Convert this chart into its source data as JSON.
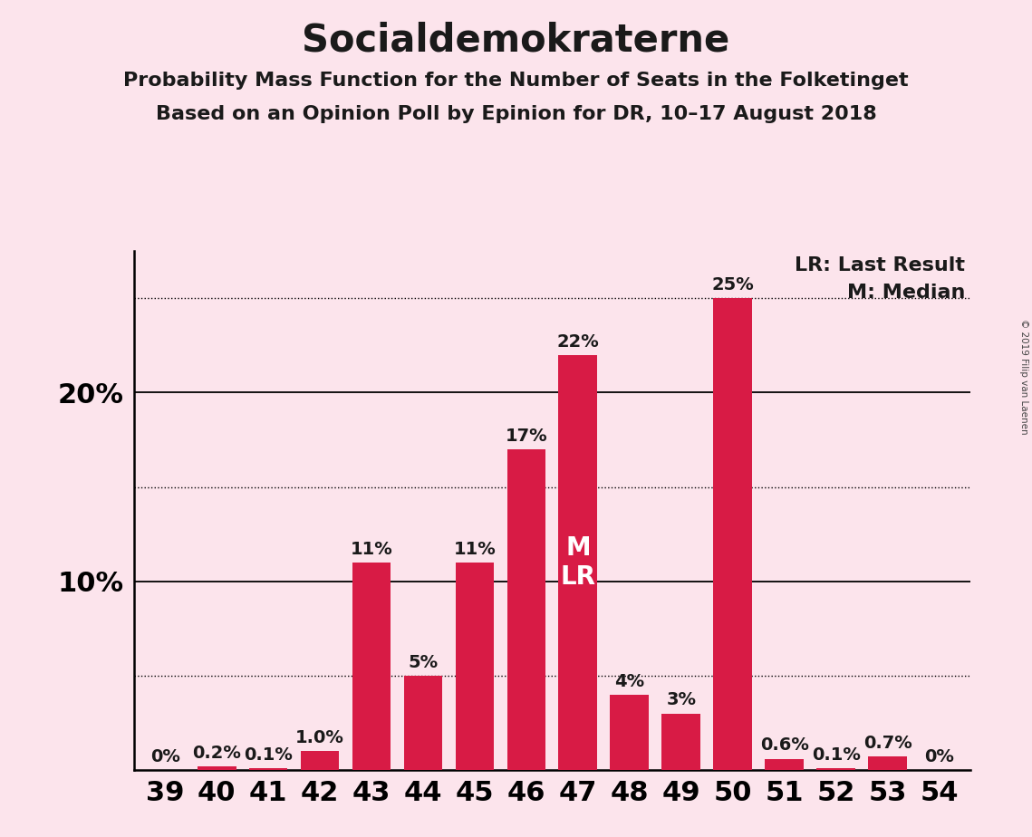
{
  "title": "Socialdemokraterne",
  "subtitle1": "Probability Mass Function for the Number of Seats in the Folketinget",
  "subtitle2": "Based on an Opinion Poll by Epinion for DR, 10–17 August 2018",
  "copyright": "© 2019 Filip van Laenen",
  "categories": [
    39,
    40,
    41,
    42,
    43,
    44,
    45,
    46,
    47,
    48,
    49,
    50,
    51,
    52,
    53,
    54
  ],
  "values": [
    0.0,
    0.2,
    0.1,
    1.0,
    11.0,
    5.0,
    11.0,
    17.0,
    22.0,
    4.0,
    3.0,
    25.0,
    0.6,
    0.1,
    0.7,
    0.0
  ],
  "labels": [
    "0%",
    "0.2%",
    "0.1%",
    "1.0%",
    "11%",
    "5%",
    "11%",
    "17%",
    "22%",
    "4%",
    "3%",
    "25%",
    "0.6%",
    "0.1%",
    "0.7%",
    "0%"
  ],
  "bar_color": "#d81b45",
  "background_color": "#fce4ec",
  "major_yticks": [
    10,
    20
  ],
  "dotted_yticks": [
    5,
    15,
    25
  ],
  "ylim": [
    0,
    27.5
  ],
  "median_seat": 47,
  "last_result_seat": 47,
  "annotation_text": "M\nLR",
  "lr_label": "LR: Last Result",
  "m_label": "M: Median",
  "title_fontsize": 30,
  "subtitle_fontsize": 16,
  "axis_fontsize": 22,
  "bar_label_fontsize": 14,
  "annotation_fontsize": 20,
  "legend_fontsize": 16
}
